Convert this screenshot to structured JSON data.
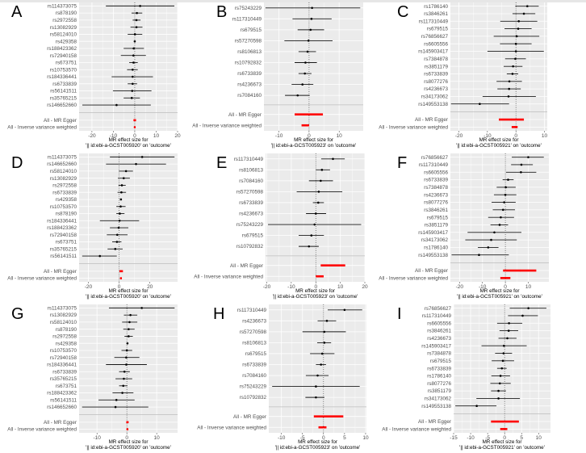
{
  "colors": {
    "panel_bg": "#ebebeb",
    "grid": "#ffffff",
    "point": "#000000",
    "ci_line": "#1a1a1a",
    "summary": "#ff0000",
    "zero_line": "#333333",
    "separator": "#bdbdbd"
  },
  "chart_data": [
    {
      "type": "forest",
      "panel": "A",
      "xlabel_line1": "MR effect size for",
      "xlabel_line2": "'|| id:ebi-a-GCST005920' on 'outcome'",
      "xlim": [
        -26,
        20
      ],
      "xticks": [
        -20,
        -10,
        0,
        10,
        20
      ],
      "xtick_labels": [
        "-20",
        "-10",
        "0",
        "10",
        "20"
      ],
      "snps": [
        {
          "label": "rs114373075",
          "est": 2.5,
          "lo": -13.5,
          "hi": 18.5
        },
        {
          "label": "rs878190",
          "est": 1.0,
          "lo": -1.5,
          "hi": 3.5
        },
        {
          "label": "rs2972558",
          "est": 0.8,
          "lo": -1.0,
          "hi": 2.7
        },
        {
          "label": "rs13082929",
          "est": 0.8,
          "lo": -2.0,
          "hi": 3.6
        },
        {
          "label": "rs58124010",
          "est": 0.1,
          "lo": -3.3,
          "hi": 3.5
        },
        {
          "label": "rs429358",
          "est": 0.0,
          "lo": -0.4,
          "hi": 0.4
        },
        {
          "label": "rs188423362",
          "est": -0.5,
          "lo": -5.2,
          "hi": 4.3
        },
        {
          "label": "rs72940158",
          "est": -0.6,
          "lo": -6.5,
          "hi": 5.2
        },
        {
          "label": "rs673751",
          "est": -0.6,
          "lo": -2.6,
          "hi": 1.4
        },
        {
          "label": "rs10753570",
          "est": -1.0,
          "lo": -3.6,
          "hi": 1.4
        },
        {
          "label": "rs184336441",
          "est": -1.0,
          "lo": -10.8,
          "hi": 8.5
        },
        {
          "label": "rs6733839",
          "est": -1.0,
          "lo": -3.3,
          "hi": 1.1
        },
        {
          "label": "rs56141511",
          "est": -1.2,
          "lo": -10.2,
          "hi": 7.8
        },
        {
          "label": "rs35765215",
          "est": -1.4,
          "lo": -5.2,
          "hi": 2.4
        },
        {
          "label": "rs146652660",
          "est": -8.5,
          "lo": -24.5,
          "hi": 7.5
        }
      ],
      "summary": [
        {
          "label": "All - MR Egger",
          "est": 0.0,
          "lo": -0.6,
          "hi": 0.6
        },
        {
          "label": "All - Inverse variance weighted",
          "est": 0.0,
          "lo": -0.4,
          "hi": 0.4
        }
      ]
    },
    {
      "type": "forest",
      "panel": "B",
      "xlabel_line1": "MR effect size for",
      "xlabel_line2": "'|| id:ebi-a-GCST005923' on 'outcome'",
      "xlim": [
        -15,
        18
      ],
      "xticks": [
        -10,
        0,
        10
      ],
      "xtick_labels": [
        "-10",
        "0",
        "10"
      ],
      "snps": [
        {
          "label": "rs75243229",
          "est": 1.0,
          "lo": -14.5,
          "hi": 17.0
        },
        {
          "label": "rs117310449",
          "est": 0.8,
          "lo": -5.5,
          "hi": 7.5
        },
        {
          "label": "rs679515",
          "est": 0.5,
          "lo": -3.8,
          "hi": 5.0
        },
        {
          "label": "rs57270598",
          "est": -0.2,
          "lo": -8.2,
          "hi": 7.8
        },
        {
          "label": "rs8106813",
          "est": -0.5,
          "lo": -3.5,
          "hi": 2.3
        },
        {
          "label": "rs10792832",
          "est": -1.2,
          "lo": -4.8,
          "hi": 2.6
        },
        {
          "label": "rs6733839",
          "est": -1.4,
          "lo": -3.5,
          "hi": 0.8
        },
        {
          "label": "rs4236673",
          "est": -2.2,
          "lo": -5.8,
          "hi": 1.4
        },
        {
          "label": "rs7084160",
          "est": -3.8,
          "lo": -8.0,
          "hi": 0.2
        }
      ],
      "summary": [
        {
          "label": "All - MR Egger",
          "est": 0.0,
          "lo": -4.8,
          "hi": 4.6
        },
        {
          "label": "All - Inverse variance weighted",
          "est": -1.2,
          "lo": -2.5,
          "hi": 0.0
        }
      ]
    },
    {
      "type": "forest",
      "panel": "C",
      "xlabel_line1": "MR effect size for",
      "xlabel_line2": "'|| id:ebi-a-GCST005921' on 'outcome'",
      "xlim": [
        -23,
        11
      ],
      "xticks": [
        -20,
        -10,
        0,
        10
      ],
      "xtick_labels": [
        "-20",
        "-10",
        "0",
        "10"
      ],
      "snps": [
        {
          "label": "rs1786140",
          "est": 4.0,
          "lo": -0.2,
          "hi": 8.0
        },
        {
          "label": "rs3846261",
          "est": 2.8,
          "lo": -1.2,
          "hi": 6.8
        },
        {
          "label": "rs117310449",
          "est": 1.0,
          "lo": -5.5,
          "hi": 7.5
        },
        {
          "label": "rs679515",
          "est": 0.8,
          "lo": -4.0,
          "hi": 5.5
        },
        {
          "label": "rs76856627",
          "est": 0.3,
          "lo": -7.8,
          "hi": 8.2
        },
        {
          "label": "rs6605556",
          "est": 0.0,
          "lo": -5.6,
          "hi": 5.5
        },
        {
          "label": "rs145903417",
          "est": 0.0,
          "lo": -10.0,
          "hi": 9.8
        },
        {
          "label": "rs7384878",
          "est": -0.2,
          "lo": -3.8,
          "hi": 3.5
        },
        {
          "label": "rs3851179",
          "est": -1.0,
          "lo": -4.3,
          "hi": 2.3
        },
        {
          "label": "rs6733839",
          "est": -1.2,
          "lo": -3.2,
          "hi": 0.8
        },
        {
          "label": "rs8077276",
          "est": -2.3,
          "lo": -6.8,
          "hi": 2.1
        },
        {
          "label": "rs4236673",
          "est": -2.4,
          "lo": -6.5,
          "hi": 1.7
        },
        {
          "label": "rs34173062",
          "est": -2.6,
          "lo": -11.7,
          "hi": 7.0
        },
        {
          "label": "rs149553138",
          "est": -12.7,
          "lo": -22.8,
          "hi": -2.4
        }
      ],
      "summary": [
        {
          "label": "All - MR Egger",
          "est": -1.5,
          "lo": -6.0,
          "hi": 2.8
        },
        {
          "label": "All - Inverse variance weighted",
          "est": -0.5,
          "lo": -1.5,
          "hi": 0.6
        }
      ]
    },
    {
      "type": "forest",
      "panel": "D",
      "xlabel_line1": "MR effect size for",
      "xlabel_line2": "'|| id:ebi-a-GCST005920' on 'outcome'",
      "xlim": [
        -26,
        38
      ],
      "xticks": [
        -20,
        0,
        20
      ],
      "xtick_labels": [
        "-20",
        "0",
        "20"
      ],
      "snps": [
        {
          "label": "rs114373075",
          "est": 15.0,
          "lo": -6.0,
          "hi": 36.0
        },
        {
          "label": "rs146652660",
          "est": 11.0,
          "lo": -8.5,
          "hi": 30.5
        },
        {
          "label": "rs58124010",
          "est": 4.5,
          "lo": 0.0,
          "hi": 9.0
        },
        {
          "label": "rs13082929",
          "est": 3.0,
          "lo": -0.8,
          "hi": 7.0
        },
        {
          "label": "rs2972558",
          "est": 1.8,
          "lo": -0.4,
          "hi": 4.3
        },
        {
          "label": "rs6733839",
          "est": 1.5,
          "lo": -1.0,
          "hi": 4.5
        },
        {
          "label": "rs429358",
          "est": 1.2,
          "lo": 0.6,
          "hi": 1.8
        },
        {
          "label": "rs10753570",
          "est": 1.0,
          "lo": -1.8,
          "hi": 4.2
        },
        {
          "label": "rs878190",
          "est": 0.5,
          "lo": -1.8,
          "hi": 3.5
        },
        {
          "label": "rs184336441",
          "est": 0.3,
          "lo": -12.5,
          "hi": 13.0
        },
        {
          "label": "rs188423362",
          "est": -0.3,
          "lo": -6.0,
          "hi": 6.0
        },
        {
          "label": "rs72940158",
          "est": -1.2,
          "lo": -8.0,
          "hi": 5.5
        },
        {
          "label": "rs673751",
          "est": -1.4,
          "lo": -4.5,
          "hi": 1.5
        },
        {
          "label": "rs35765215",
          "est": -2.5,
          "lo": -7.5,
          "hi": 2.3
        },
        {
          "label": "rs56141511",
          "est": -12.5,
          "lo": -24.0,
          "hi": -1.5
        }
      ],
      "summary": [
        {
          "label": "All - MR Egger",
          "est": 1.2,
          "lo": 0.2,
          "hi": 2.5
        },
        {
          "label": "All - Inverse variance weighted",
          "est": 1.2,
          "lo": 0.6,
          "hi": 1.8
        }
      ]
    },
    {
      "type": "forest",
      "panel": "E",
      "xlabel_line1": "MR effect size for",
      "xlabel_line2": "'|| id:ebi-a-GCST005923' on 'outcome'",
      "xlim": [
        -20.5,
        20
      ],
      "xticks": [
        -20,
        -10,
        0,
        10,
        20
      ],
      "xtick_labels": [
        "-20",
        "-10",
        "0",
        "10",
        "20"
      ],
      "snps": [
        {
          "label": "rs117310449",
          "est": 7.0,
          "lo": 2.2,
          "hi": 11.8
        },
        {
          "label": "rs8106813",
          "est": 2.5,
          "lo": 0.0,
          "hi": 5.8
        },
        {
          "label": "rs7084160",
          "est": 2.0,
          "lo": -2.8,
          "hi": 7.0
        },
        {
          "label": "rs57270598",
          "est": 1.2,
          "lo": -7.8,
          "hi": 10.8
        },
        {
          "label": "rs6733839",
          "est": 1.0,
          "lo": -1.2,
          "hi": 3.3
        },
        {
          "label": "rs4236673",
          "est": 0.0,
          "lo": -4.0,
          "hi": 4.2
        },
        {
          "label": "rs75243229",
          "est": -0.5,
          "lo": -19.5,
          "hi": 18.5
        },
        {
          "label": "rs679515",
          "est": -1.8,
          "lo": -7.0,
          "hi": 3.3
        },
        {
          "label": "rs10792832",
          "est": -2.8,
          "lo": -7.0,
          "hi": 1.2
        }
      ],
      "summary": [
        {
          "label": "All - MR Egger",
          "est": 7.0,
          "lo": 2.0,
          "hi": 12.0
        },
        {
          "label": "All - Inverse variance weighted",
          "est": 1.5,
          "lo": 0.0,
          "hi": 3.2
        }
      ]
    },
    {
      "type": "forest",
      "panel": "F",
      "xlabel_line1": "MR effect size for",
      "xlabel_line2": "'|| id:ebi-a-GCST005921' on 'outcome'",
      "xlim": [
        -24,
        19
      ],
      "xticks": [
        -20,
        -10,
        0,
        10
      ],
      "xtick_labels": [
        "-20",
        "-10",
        "0",
        "10"
      ],
      "snps": [
        {
          "label": "rs76856627",
          "est": 10.0,
          "lo": 2.8,
          "hi": 16.8
        },
        {
          "label": "rs117310449",
          "est": 7.0,
          "lo": 2.5,
          "hi": 12.0
        },
        {
          "label": "rs6605556",
          "est": 6.8,
          "lo": 0.3,
          "hi": 13.5
        },
        {
          "label": "rs6733839",
          "est": 1.2,
          "lo": -1.2,
          "hi": 3.6
        },
        {
          "label": "rs7384878",
          "est": 0.2,
          "lo": -3.8,
          "hi": 4.5
        },
        {
          "label": "rs4236673",
          "est": 0.0,
          "lo": -5.0,
          "hi": 4.8
        },
        {
          "label": "rs8077276",
          "est": -0.5,
          "lo": -6.0,
          "hi": 4.5
        },
        {
          "label": "rs3846261",
          "est": -1.0,
          "lo": -5.5,
          "hi": 4.2
        },
        {
          "label": "rs679515",
          "est": -2.0,
          "lo": -7.5,
          "hi": 3.8
        },
        {
          "label": "rs3851179",
          "est": -2.5,
          "lo": -6.5,
          "hi": 1.2
        },
        {
          "label": "rs145903417",
          "est": -4.8,
          "lo": -16.5,
          "hi": 7.0
        },
        {
          "label": "rs34173062",
          "est": -6.2,
          "lo": -17.5,
          "hi": 5.0
        },
        {
          "label": "rs1786140",
          "est": -7.5,
          "lo": -12.0,
          "hi": -3.0
        },
        {
          "label": "rs149553138",
          "est": -11.5,
          "lo": -23.5,
          "hi": 1.5
        }
      ],
      "summary": [
        {
          "label": "All - MR Egger",
          "est": 6.5,
          "lo": -1.0,
          "hi": 13.5
        },
        {
          "label": "All - Inverse variance weighted",
          "est": 0.0,
          "lo": -2.2,
          "hi": 2.2
        }
      ]
    },
    {
      "type": "forest",
      "panel": "G",
      "xlabel_line1": "MR effect size for",
      "xlabel_line2": "'|| id:ebi-a-GCST005920' on 'outcome'",
      "xlim": [
        -16,
        17
      ],
      "xticks": [
        -10,
        0,
        10
      ],
      "xtick_labels": [
        "-10",
        "0",
        "10"
      ],
      "snps": [
        {
          "label": "rs114373075",
          "est": 5.0,
          "lo": -6.0,
          "hi": 16.0
        },
        {
          "label": "rs13082929",
          "est": 1.2,
          "lo": -1.0,
          "hi": 3.5
        },
        {
          "label": "rs58124010",
          "est": 0.9,
          "lo": -1.6,
          "hi": 3.5
        },
        {
          "label": "rs878190",
          "est": 0.6,
          "lo": -1.2,
          "hi": 2.6
        },
        {
          "label": "rs2972558",
          "est": 0.6,
          "lo": -0.8,
          "hi": 2.0
        },
        {
          "label": "rs429358",
          "est": 0.2,
          "lo": -0.1,
          "hi": 0.5
        },
        {
          "label": "rs10753570",
          "est": 0.0,
          "lo": -1.8,
          "hi": 1.8
        },
        {
          "label": "rs72940158",
          "est": -0.2,
          "lo": -4.2,
          "hi": 4.2
        },
        {
          "label": "rs184336441",
          "est": -0.2,
          "lo": -7.0,
          "hi": 6.7
        },
        {
          "label": "rs6733839",
          "est": -0.8,
          "lo": -2.6,
          "hi": 1.0
        },
        {
          "label": "rs35765215",
          "est": -1.0,
          "lo": -3.8,
          "hi": 1.8
        },
        {
          "label": "rs673751",
          "est": -1.2,
          "lo": -2.6,
          "hi": 0.2
        },
        {
          "label": "rs188423362",
          "est": -1.5,
          "lo": -4.8,
          "hi": 2.2
        },
        {
          "label": "rs56141511",
          "est": -3.5,
          "lo": -9.5,
          "hi": 2.6
        },
        {
          "label": "rs146652660",
          "est": -3.8,
          "lo": -15.0,
          "hi": 7.2
        }
      ],
      "summary": [
        {
          "label": "All - MR Egger",
          "est": 0.2,
          "lo": -0.2,
          "hi": 0.6
        },
        {
          "label": "All - Inverse variance weighted",
          "est": 0.2,
          "lo": -0.1,
          "hi": 0.5
        }
      ]
    },
    {
      "type": "forest",
      "panel": "H",
      "xlabel_line1": "MR effect size for",
      "xlabel_line2": "'|| id:ebi-a-GCST005923' on 'outcome'",
      "xlim": [
        -13,
        10.2
      ],
      "xticks": [
        -10,
        -5,
        0,
        5,
        10
      ],
      "xtick_labels": [
        "-10",
        "-5",
        "0",
        "5",
        "10"
      ],
      "snps": [
        {
          "label": "rs117310449",
          "est": 5.0,
          "lo": 1.0,
          "hi": 9.2
        },
        {
          "label": "rs4236673",
          "est": 0.8,
          "lo": -1.4,
          "hi": 3.0
        },
        {
          "label": "rs57270598",
          "est": 0.2,
          "lo": -5.0,
          "hi": 5.3
        },
        {
          "label": "rs8106813",
          "est": 0.2,
          "lo": -1.5,
          "hi": 1.8
        },
        {
          "label": "rs679515",
          "est": -0.3,
          "lo": -3.2,
          "hi": 2.6
        },
        {
          "label": "rs6733839",
          "est": -0.6,
          "lo": -1.8,
          "hi": 0.6
        },
        {
          "label": "rs7084160",
          "est": -1.4,
          "lo": -4.2,
          "hi": 1.2
        },
        {
          "label": "rs75243229",
          "est": -1.8,
          "lo": -12.2,
          "hi": 8.6
        },
        {
          "label": "rs10792832",
          "est": -1.8,
          "lo": -4.3,
          "hi": 0.2
        }
      ],
      "summary": [
        {
          "label": "All - MR Egger",
          "est": 1.0,
          "lo": -2.3,
          "hi": 4.7
        },
        {
          "label": "All - Inverse variance weighted",
          "est": -0.3,
          "lo": -1.2,
          "hi": 0.7
        }
      ]
    },
    {
      "type": "forest",
      "panel": "I",
      "xlabel_line1": "MR effect size for",
      "xlabel_line2": "'|| id:ebi-a-GCST005921' on 'outcome'",
      "xlim": [
        -15,
        13.5
      ],
      "xticks": [
        -15,
        -10,
        -5,
        0,
        5,
        10
      ],
      "xtick_labels": [
        "-15",
        "-10",
        "-5",
        "0",
        "5",
        "10"
      ],
      "snps": [
        {
          "label": "rs76856627",
          "est": 7.0,
          "lo": 1.5,
          "hi": 12.3
        },
        {
          "label": "rs117310449",
          "est": 5.3,
          "lo": 1.0,
          "hi": 9.8
        },
        {
          "label": "rs6605556",
          "est": 1.3,
          "lo": -2.2,
          "hi": 5.2
        },
        {
          "label": "rs3846261",
          "est": 1.2,
          "lo": -1.5,
          "hi": 4.0
        },
        {
          "label": "rs4236673",
          "est": 0.8,
          "lo": -1.8,
          "hi": 3.5
        },
        {
          "label": "rs145903417",
          "est": -0.2,
          "lo": -6.8,
          "hi": 6.5
        },
        {
          "label": "rs7384878",
          "est": -0.3,
          "lo": -2.8,
          "hi": 2.2
        },
        {
          "label": "rs679515",
          "est": -0.5,
          "lo": -3.8,
          "hi": 2.8
        },
        {
          "label": "rs6733839",
          "est": -0.8,
          "lo": -2.2,
          "hi": 0.6
        },
        {
          "label": "rs1786140",
          "est": -1.2,
          "lo": -3.9,
          "hi": 1.6
        },
        {
          "label": "rs8077276",
          "est": -1.4,
          "lo": -4.2,
          "hi": 1.8
        },
        {
          "label": "rs3851179",
          "est": -1.8,
          "lo": -4.0,
          "hi": 0.4
        },
        {
          "label": "rs34173062",
          "est": -1.8,
          "lo": -8.3,
          "hi": 4.5
        },
        {
          "label": "rs149553138",
          "est": -8.2,
          "lo": -14.5,
          "hi": -2.4
        }
      ],
      "summary": [
        {
          "label": "All - MR Egger",
          "est": 0.2,
          "lo": -4.0,
          "hi": 4.2
        },
        {
          "label": "All - Inverse variance weighted",
          "est": -0.2,
          "lo": -1.3,
          "hi": 0.8
        }
      ]
    }
  ]
}
